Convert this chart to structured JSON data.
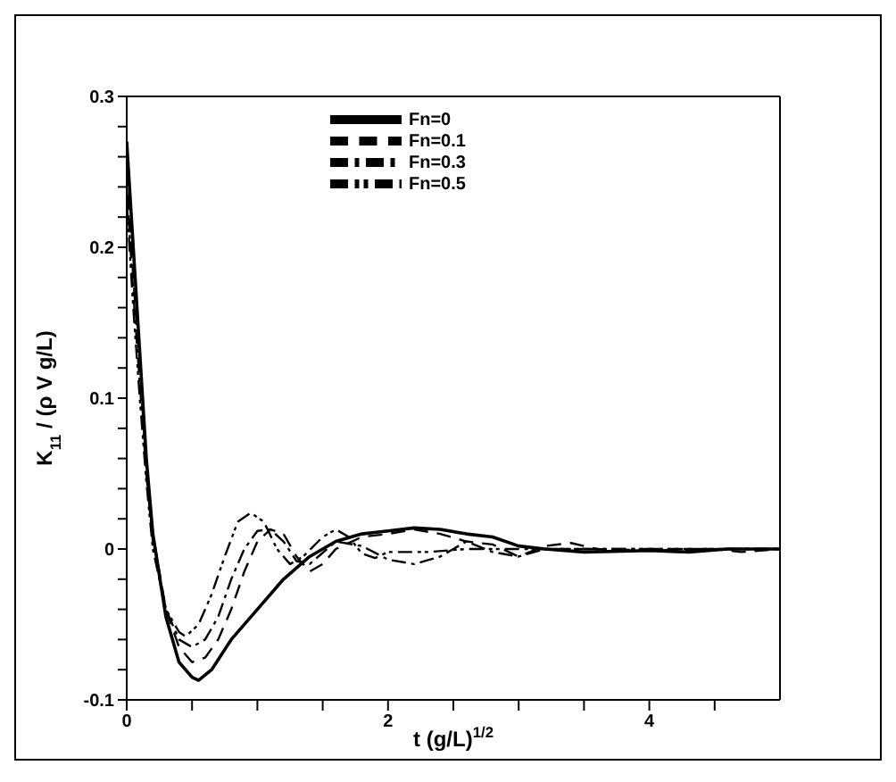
{
  "chart_data": {
    "type": "line",
    "xlabel": "t (g/L)$^{1/2}$",
    "ylabel": "K$_{11}$ / (ρ V g/L)",
    "xlim": [
      0,
      5
    ],
    "ylim": [
      -0.1,
      0.3
    ],
    "xticks": [
      0,
      {
        "value": 0.5,
        "label": null
      },
      {
        "value": 1,
        "label": null
      },
      {
        "value": 1.5,
        "label": null
      },
      2,
      {
        "value": 2.5,
        "label": null
      },
      {
        "value": 3,
        "label": null
      },
      {
        "value": 3.5,
        "label": null
      },
      4,
      {
        "value": 4.5,
        "label": null
      }
    ],
    "yticks": [
      -0.1,
      {
        "value": -0.08,
        "label": null
      },
      {
        "value": -0.06,
        "label": null
      },
      {
        "value": -0.04,
        "label": null
      },
      {
        "value": -0.02,
        "label": null
      },
      0,
      {
        "value": 0.02,
        "label": null
      },
      {
        "value": 0.04,
        "label": null
      },
      {
        "value": 0.06,
        "label": null
      },
      {
        "value": 0.08,
        "label": null
      },
      0.1,
      {
        "value": 0.12,
        "label": null
      },
      {
        "value": 0.14,
        "label": null
      },
      {
        "value": 0.16,
        "label": null
      },
      {
        "value": 0.18,
        "label": null
      },
      0.2,
      {
        "value": 0.22,
        "label": null
      },
      {
        "value": 0.24,
        "label": null
      },
      {
        "value": 0.26,
        "label": null
      },
      {
        "value": 0.28,
        "label": null
      },
      0.3
    ],
    "legend": "top",
    "marker": "none",
    "series": [
      {
        "name": "Fn=0",
        "color": "#000000",
        "line_style": "solid",
        "x": [
          0,
          0.05,
          0.1,
          0.15,
          0.2,
          0.3,
          0.4,
          0.5,
          0.55,
          0.65,
          0.8,
          1.0,
          1.2,
          1.4,
          1.6,
          1.8,
          2.0,
          2.2,
          2.4,
          2.6,
          2.8,
          3.0,
          3.2,
          3.5,
          4.0,
          4.3,
          4.6,
          5.0
        ],
        "values": [
          0.27,
          0.2,
          0.13,
          0.06,
          0.01,
          -0.045,
          -0.075,
          -0.085,
          -0.087,
          -0.08,
          -0.06,
          -0.04,
          -0.02,
          -0.005,
          0.005,
          0.01,
          0.012,
          0.014,
          0.013,
          0.01,
          0.008,
          0.002,
          0,
          -0.002,
          -0.001,
          -0.002,
          0,
          0
        ]
      },
      {
        "name": "Fn=0.1",
        "color": "#000000",
        "line_style": "dashed",
        "x": [
          0,
          0.05,
          0.1,
          0.15,
          0.2,
          0.3,
          0.4,
          0.5,
          0.6,
          0.7,
          0.8,
          0.9,
          1.0,
          1.1,
          1.2,
          1.3,
          1.4,
          1.5,
          1.6,
          1.8,
          2.0,
          2.2,
          2.4,
          2.6,
          2.8,
          3.0,
          3.2,
          3.4,
          3.6,
          4.0,
          4.5,
          4.7,
          5.0
        ],
        "values": [
          0.25,
          0.18,
          0.12,
          0.055,
          0.01,
          -0.04,
          -0.065,
          -0.075,
          -0.072,
          -0.06,
          -0.04,
          -0.015,
          0.005,
          0.013,
          0.01,
          -0.005,
          -0.015,
          -0.01,
          0,
          0.008,
          0.01,
          0.013,
          0.01,
          0.005,
          0.003,
          -0.005,
          0.002,
          0.004,
          0,
          -0.001,
          0,
          -0.002,
          0
        ]
      },
      {
        "name": "Fn=0.3",
        "color": "#000000",
        "line_style": "dashdot",
        "x": [
          0,
          0.05,
          0.1,
          0.15,
          0.2,
          0.3,
          0.4,
          0.5,
          0.6,
          0.7,
          0.8,
          0.9,
          1.0,
          1.1,
          1.2,
          1.3,
          1.4,
          1.6,
          1.8,
          2.0,
          2.2,
          2.4,
          2.6,
          2.8,
          3.0,
          3.2,
          4.0,
          5.0
        ],
        "values": [
          0.24,
          0.17,
          0.11,
          0.05,
          0.005,
          -0.04,
          -0.06,
          -0.065,
          -0.06,
          -0.045,
          -0.02,
          0,
          0.012,
          0.013,
          0.005,
          -0.008,
          -0.01,
          0.005,
          0.002,
          -0.007,
          -0.01,
          -0.005,
          0.005,
          -0.002,
          -0.005,
          0,
          0,
          0
        ]
      },
      {
        "name": "Fn=0.5",
        "color": "#000000",
        "line_style": "dashdotdot",
        "x": [
          0,
          0.05,
          0.1,
          0.15,
          0.2,
          0.3,
          0.4,
          0.45,
          0.55,
          0.65,
          0.75,
          0.85,
          0.95,
          1.05,
          1.15,
          1.25,
          1.35,
          1.5,
          1.6,
          1.7,
          1.8,
          1.9,
          2.0,
          2.3,
          2.6,
          3.0,
          4.0,
          5.0
        ],
        "values": [
          0.23,
          0.16,
          0.1,
          0.045,
          0,
          -0.04,
          -0.055,
          -0.058,
          -0.05,
          -0.03,
          -0.005,
          0.018,
          0.024,
          0.018,
          0,
          -0.01,
          -0.005,
          0.008,
          0.013,
          0.008,
          -0.003,
          -0.006,
          -0.002,
          -0.002,
          0,
          0,
          0,
          0
        ]
      }
    ]
  }
}
